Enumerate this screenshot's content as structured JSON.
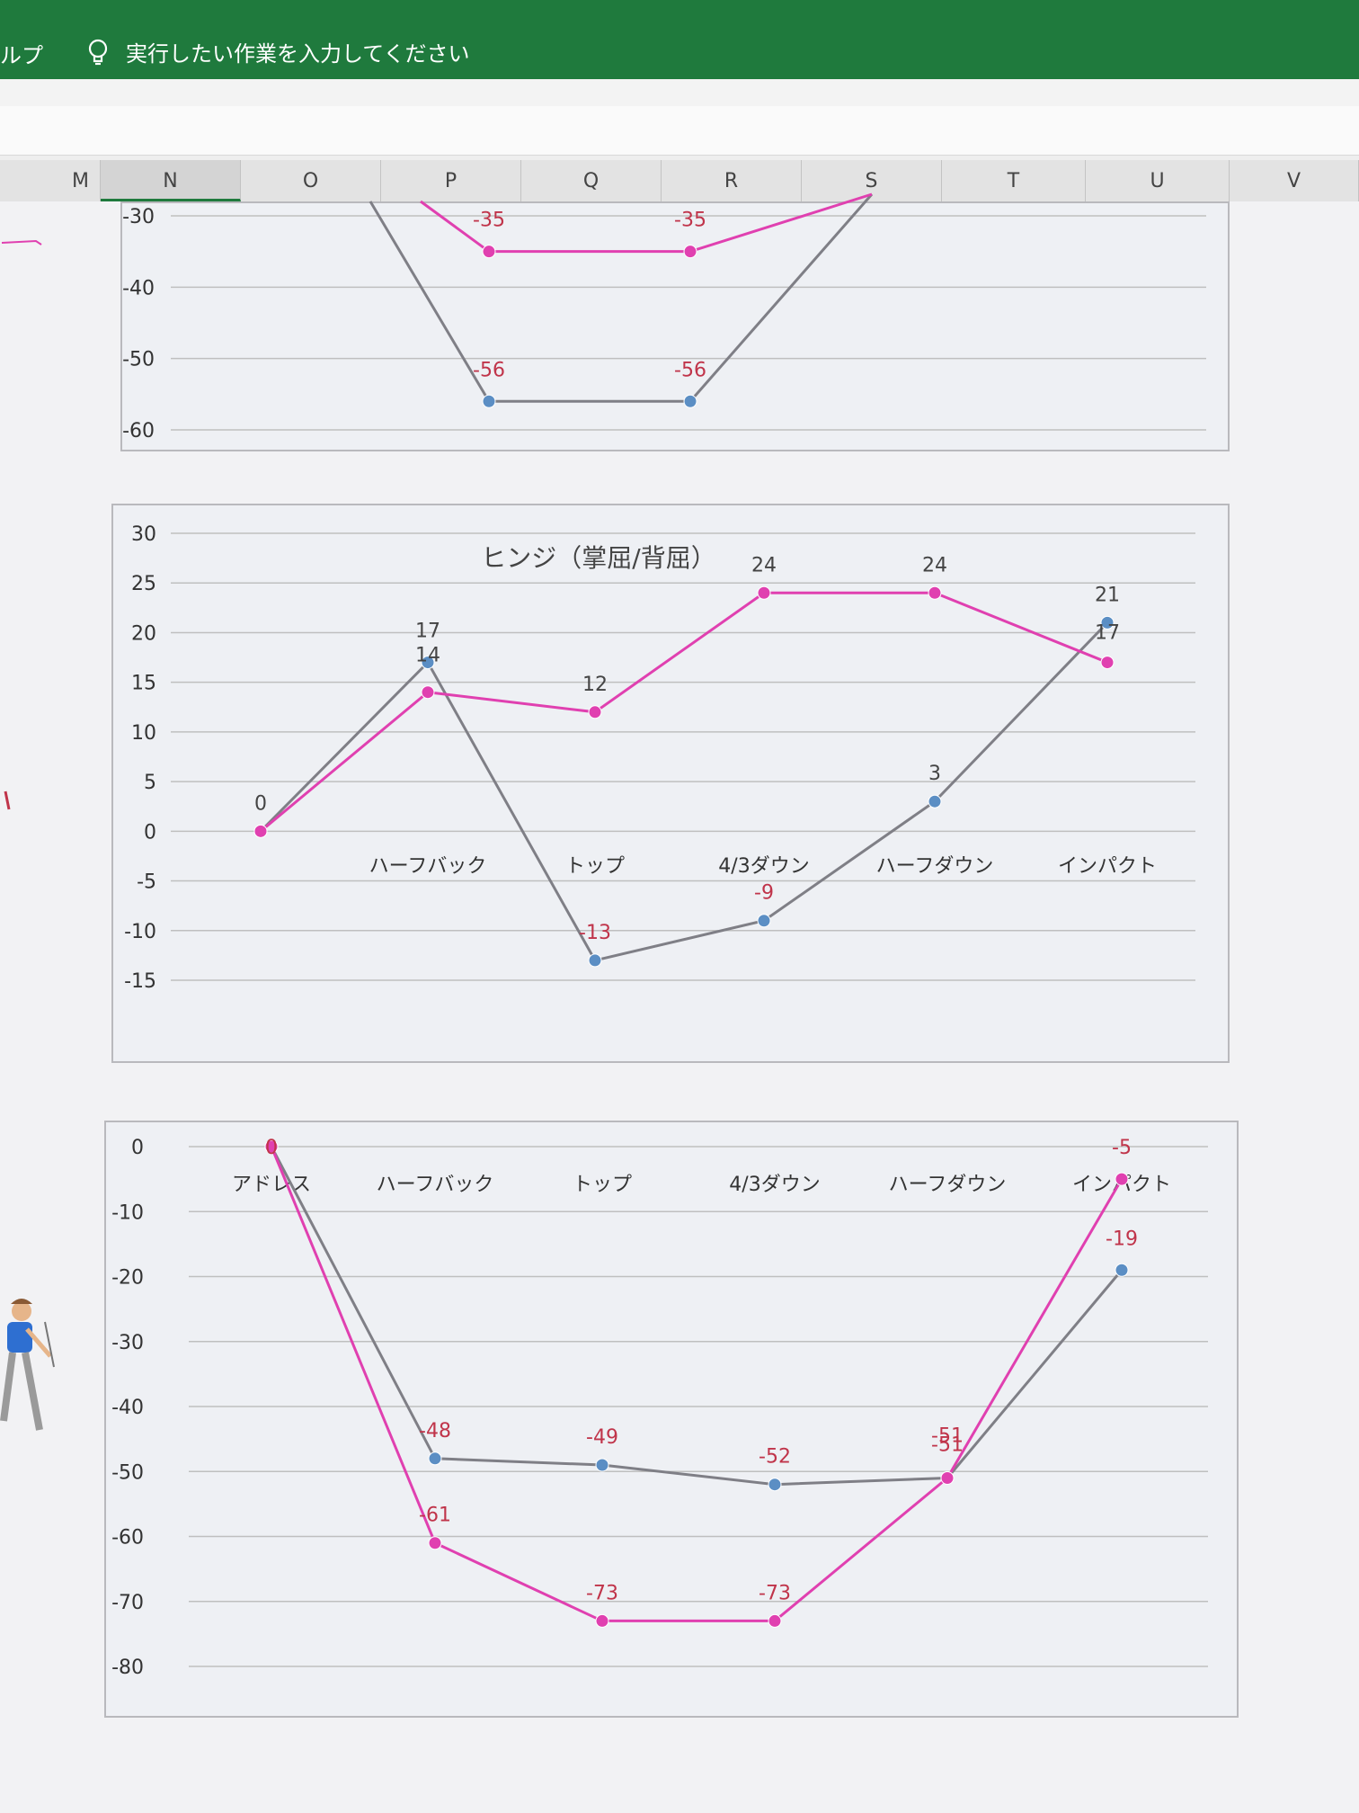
{
  "ribbon": {
    "help_label": "ルプ",
    "tell_me": "実行したい作業を入力してください",
    "tell_me_icon": "lightbulb-icon"
  },
  "columns": [
    "M",
    "N",
    "O",
    "P",
    "Q",
    "R",
    "S",
    "T",
    "U",
    "V"
  ],
  "active_column": "N",
  "colors": {
    "ribbon": "#1f7a3d",
    "pink_series": "#e040b0",
    "gray_series": "#7f7f86",
    "blue_marker": "#5b8ec4",
    "label_red": "#c0344a",
    "grid": "#bfbfbf"
  },
  "chart_data": [
    {
      "type": "line",
      "title": "",
      "categories": [
        "",
        "",
        "",
        "",
        "",
        ""
      ],
      "ylim": [
        -60,
        -30
      ],
      "yticks": [
        -30,
        -40,
        -50,
        -60
      ],
      "grid": true,
      "legend": "none",
      "series": [
        {
          "color": "pink",
          "values": [
            null,
            null,
            -35,
            -35,
            null,
            null
          ]
        },
        {
          "color": "gray",
          "values": [
            null,
            null,
            -56,
            -56,
            null,
            null
          ]
        }
      ]
    },
    {
      "type": "line",
      "title": "ヒンジ（掌屈/背屈）",
      "categories": [
        "",
        "ハーフバック",
        "トップ",
        "4/3ダウン",
        "ハーフダウン",
        "インパクト"
      ],
      "ylim": [
        -15,
        30
      ],
      "yticks": [
        30,
        25,
        20,
        15,
        10,
        5,
        0,
        -5,
        -10,
        -15
      ],
      "grid": true,
      "legend": "none",
      "series": [
        {
          "color": "pink",
          "values": [
            0,
            14,
            12,
            24,
            24,
            17
          ]
        },
        {
          "color": "gray",
          "values": [
            0,
            17,
            -13,
            -9,
            3,
            21
          ]
        }
      ]
    },
    {
      "type": "line",
      "title": "",
      "categories": [
        "アドレス",
        "ハーフバック",
        "トップ",
        "4/3ダウン",
        "ハーフダウン",
        "インパクト"
      ],
      "ylim": [
        -80,
        0
      ],
      "yticks": [
        0,
        -10,
        -20,
        -30,
        -40,
        -50,
        -60,
        -70,
        -80
      ],
      "grid": true,
      "legend": "none",
      "series": [
        {
          "color": "pink",
          "values": [
            0,
            -61,
            -73,
            -73,
            -51,
            -5
          ]
        },
        {
          "color": "gray",
          "values": [
            0,
            -48,
            -49,
            -52,
            -51,
            -19
          ]
        }
      ]
    }
  ]
}
